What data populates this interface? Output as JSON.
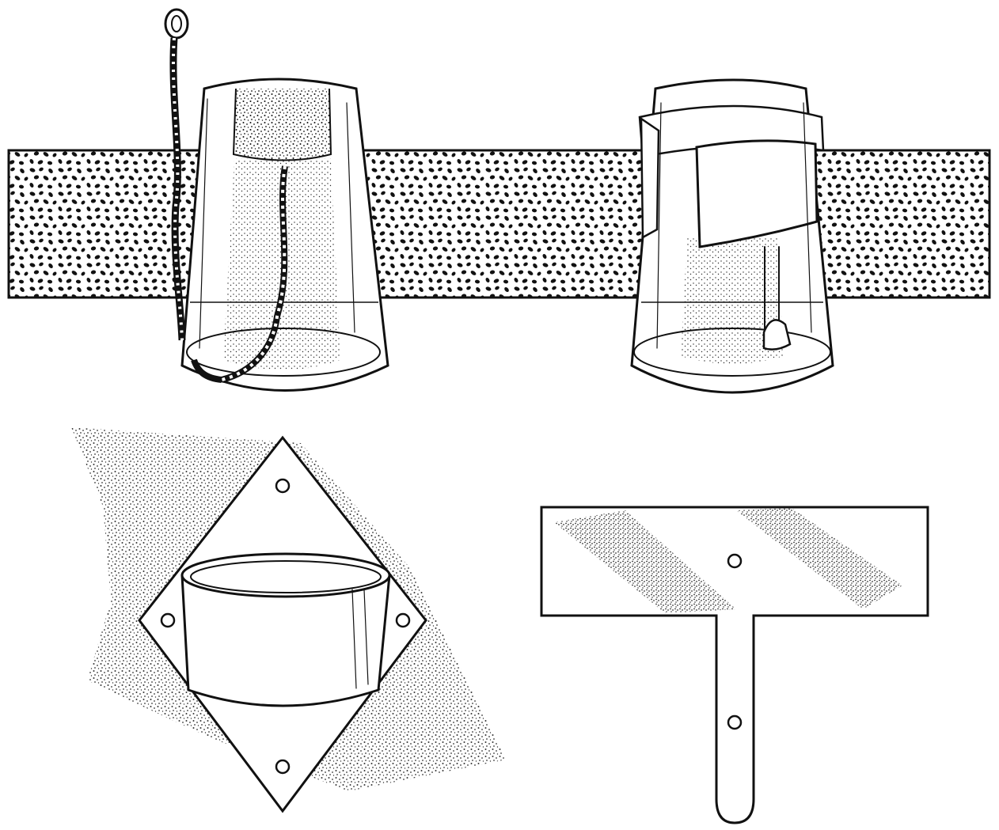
{
  "figure": {
    "ink_color": "#111111",
    "paper_color": "#ffffff",
    "band_color": "#ffffff",
    "components": [
      {
        "id": "tumbler-with-rope",
        "icon": "tumbler-cork-rope-icon"
      },
      {
        "id": "tumbler-with-clamp",
        "icon": "tumbler-metal-band-icon"
      },
      {
        "id": "diamond-bracket-cup",
        "icon": "diamond-plate-cup-icon"
      },
      {
        "id": "t-bracket",
        "icon": "t-shaped-plate-icon"
      }
    ]
  }
}
